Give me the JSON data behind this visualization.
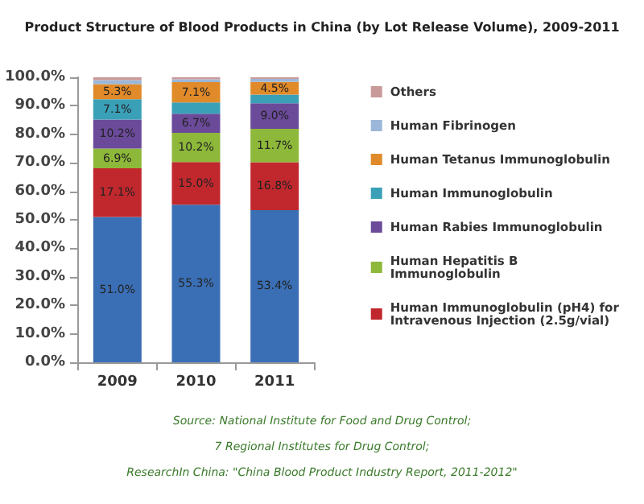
{
  "chart_data": {
    "type": "bar",
    "title": "Product Structure of Blood Products in China (by Lot Release Volume), 2009-2011",
    "categories": [
      "2009",
      "2010",
      "2011"
    ],
    "stacked": true,
    "ylim": [
      0,
      100
    ],
    "yticks": [
      {
        "value": 0,
        "label": "0.0%"
      },
      {
        "value": 10,
        "label": "10.0%"
      },
      {
        "value": 20,
        "label": "20.0%"
      },
      {
        "value": 30,
        "label": "30.0%"
      },
      {
        "value": 40,
        "label": "40.0%"
      },
      {
        "value": 50,
        "label": "50.0%"
      },
      {
        "value": 60,
        "label": "60.0%"
      },
      {
        "value": 70,
        "label": "70.0%"
      },
      {
        "value": 80,
        "label": "80.0%"
      },
      {
        "value": 90,
        "label": "90.0%"
      },
      {
        "value": 100,
        "label": "100.0%"
      }
    ],
    "grid": false,
    "legend": "right",
    "series": [
      {
        "color": "#3a6fb5",
        "values": [
          51.0,
          55.3,
          53.4
        ],
        "value_labels": [
          "51.0%",
          "55.3%",
          "53.4%"
        ]
      },
      {
        "name": "Human Immunoglobulin (pH4) for Intravenous Injection (2.5g/vial)",
        "color": "#c0282d",
        "values": [
          17.1,
          15.0,
          16.8
        ],
        "value_labels": [
          "17.1%",
          "15.0%",
          "16.8%"
        ]
      },
      {
        "name": "Human Hepatitis B Immunoglobulin",
        "color": "#8db83a",
        "values": [
          6.9,
          10.2,
          11.7
        ],
        "value_labels": [
          "6.9%",
          "10.2%",
          "11.7%"
        ]
      },
      {
        "name": "Human Rabies Immunoglobulin",
        "color": "#6b4a9a",
        "values": [
          10.2,
          6.7,
          9.0
        ],
        "value_labels": [
          "10.2%",
          "6.7%",
          "9.0%"
        ]
      },
      {
        "name": "Human Immunoglobulin",
        "color": "#3aa0b8",
        "values": [
          7.1,
          4.0,
          3.0
        ],
        "value_labels": [
          "7.1%",
          null,
          null
        ]
      },
      {
        "name": "Human Tetanus Immunoglobulin",
        "color": "#e08a2a",
        "values": [
          5.3,
          7.1,
          4.5
        ],
        "value_labels": [
          "5.3%",
          "7.1%",
          "4.5%"
        ]
      },
      {
        "name": "Human Fibrinogen",
        "color": "#9bb7d9",
        "values": [
          1.4,
          1.0,
          1.0
        ]
      },
      {
        "name": "Others",
        "color": "#c99a9a",
        "values": [
          1.0,
          0.7,
          0.6
        ]
      }
    ],
    "annotations": [
      "Source: National Institute for Food and Drug Control;",
      "7 Regional Institutes for Drug Control;",
      "ResearchIn China: \"China Blood Product Industry Report, 2011-2012\""
    ]
  }
}
